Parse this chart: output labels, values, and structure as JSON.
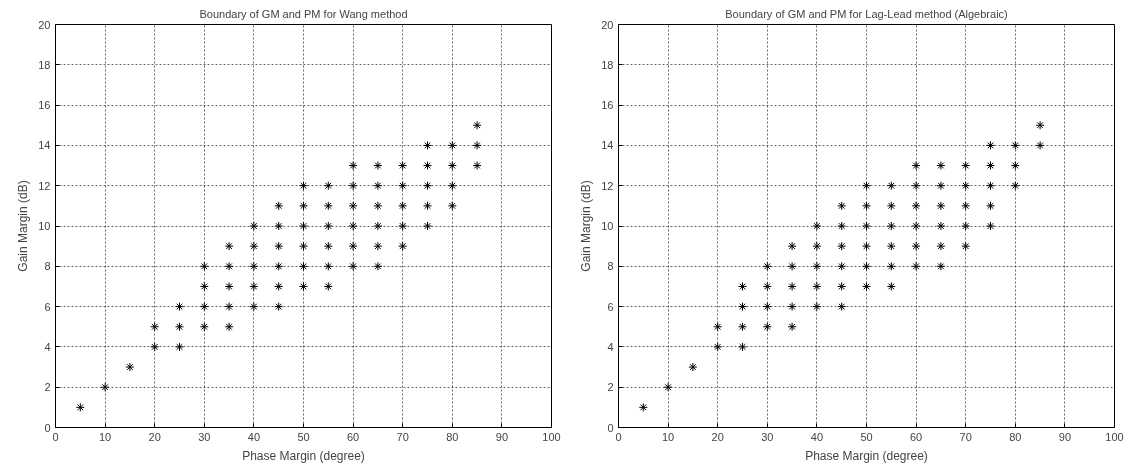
{
  "chart_data": [
    {
      "type": "scatter",
      "title": "Boundary of GM and PM for Wang method",
      "xlabel": "Phase Margin (degree)",
      "ylabel": "Gain Margin (dB)",
      "marker": "cross",
      "grid": true,
      "xlim": [
        0,
        100
      ],
      "ylim": [
        0,
        20
      ],
      "xticks": [
        0,
        10,
        20,
        30,
        40,
        50,
        60,
        70,
        80,
        90,
        100
      ],
      "yticks": [
        0,
        2,
        4,
        6,
        8,
        10,
        12,
        14,
        16,
        18,
        20
      ],
      "series": [
        {
          "color": "#000000",
          "x": [
            5,
            10,
            15,
            20,
            20,
            25,
            25,
            25,
            30,
            30,
            30,
            30,
            35,
            35,
            35,
            35,
            35,
            40,
            40,
            40,
            40,
            40,
            45,
            45,
            45,
            45,
            45,
            45,
            50,
            50,
            50,
            50,
            50,
            50,
            55,
            55,
            55,
            55,
            55,
            55,
            60,
            60,
            60,
            60,
            60,
            60,
            65,
            65,
            65,
            65,
            65,
            65,
            70,
            70,
            70,
            70,
            70,
            75,
            75,
            75,
            75,
            75,
            80,
            80,
            80,
            80,
            85,
            85,
            85
          ],
          "values": [
            1,
            2,
            3,
            4,
            5,
            4,
            5,
            6,
            5,
            6,
            7,
            8,
            5,
            6,
            7,
            8,
            9,
            6,
            7,
            8,
            9,
            10,
            6,
            7,
            8,
            9,
            10,
            11,
            7,
            8,
            9,
            10,
            11,
            12,
            7,
            8,
            9,
            10,
            11,
            12,
            8,
            9,
            10,
            11,
            12,
            13,
            8,
            9,
            10,
            11,
            12,
            13,
            9,
            10,
            11,
            12,
            13,
            10,
            11,
            12,
            13,
            14,
            11,
            12,
            13,
            14,
            13,
            14,
            15
          ]
        }
      ]
    },
    {
      "type": "scatter",
      "title": "Boundary of GM and PM for Lag-Lead method (Algebraic)",
      "xlabel": "Phase Margin (degree)",
      "ylabel": "Gain Margin (dB)",
      "marker": "cross",
      "grid": true,
      "xlim": [
        0,
        100
      ],
      "ylim": [
        0,
        20
      ],
      "xticks": [
        0,
        10,
        20,
        30,
        40,
        50,
        60,
        70,
        80,
        90,
        100
      ],
      "yticks": [
        0,
        2,
        4,
        6,
        8,
        10,
        12,
        14,
        16,
        18,
        20
      ],
      "series": [
        {
          "color": "#000000",
          "x": [
            5,
            10,
            15,
            20,
            20,
            25,
            25,
            25,
            25,
            30,
            30,
            30,
            30,
            35,
            35,
            35,
            35,
            35,
            40,
            40,
            40,
            40,
            40,
            45,
            45,
            45,
            45,
            45,
            45,
            50,
            50,
            50,
            50,
            50,
            50,
            55,
            55,
            55,
            55,
            55,
            55,
            60,
            60,
            60,
            60,
            60,
            60,
            65,
            65,
            65,
            65,
            65,
            65,
            70,
            70,
            70,
            70,
            70,
            75,
            75,
            75,
            75,
            75,
            80,
            80,
            80,
            85,
            85
          ],
          "values": [
            1,
            2,
            3,
            4,
            5,
            4,
            5,
            6,
            7,
            5,
            6,
            7,
            8,
            5,
            6,
            7,
            8,
            9,
            6,
            7,
            8,
            9,
            10,
            6,
            7,
            8,
            9,
            10,
            11,
            7,
            8,
            9,
            10,
            11,
            12,
            7,
            8,
            9,
            10,
            11,
            12,
            8,
            9,
            10,
            11,
            12,
            13,
            8,
            9,
            10,
            11,
            12,
            13,
            9,
            10,
            11,
            12,
            13,
            10,
            11,
            12,
            13,
            14,
            12,
            13,
            14,
            14,
            15
          ]
        }
      ]
    }
  ]
}
